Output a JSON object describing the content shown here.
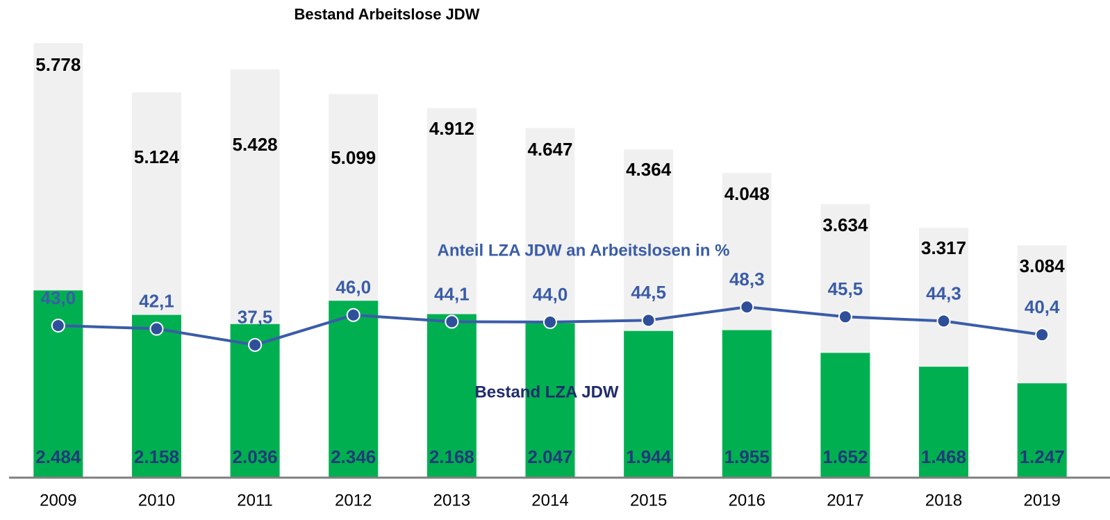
{
  "chart_data": {
    "type": "bar",
    "categories": [
      "2009",
      "2010",
      "2011",
      "2012",
      "2013",
      "2014",
      "2015",
      "2016",
      "2017",
      "2018",
      "2019"
    ],
    "ylim": [
      0,
      6000
    ],
    "y2lim": [
      0,
      128
    ],
    "series": [
      {
        "name": "Bestand Arbeitslose JDW",
        "type": "bar",
        "color": "#f0f0f0",
        "label_color": "#000000",
        "values": [
          5778,
          5124,
          5428,
          5099,
          4912,
          4647,
          4364,
          4048,
          3634,
          3317,
          3084
        ],
        "value_labels": [
          "5.778",
          "5.124",
          "5.428",
          "5.099",
          "4.912",
          "4.647",
          "4.364",
          "4.048",
          "3.634",
          "3.317",
          "3.084"
        ]
      },
      {
        "name": "Bestand LZA JDW",
        "type": "bar",
        "color": "#00b050",
        "label_color": "#223a7a",
        "values": [
          2484,
          2158,
          2036,
          2346,
          2168,
          2047,
          1944,
          1955,
          1652,
          1468,
          1247
        ],
        "value_labels": [
          "2.484",
          "2.158",
          "2.036",
          "2.346",
          "2.168",
          "2.047",
          "1.944",
          "1.955",
          "1.652",
          "1.468",
          "1.247"
        ]
      },
      {
        "name": "Anteil LZA JDW an Arbeitslosen in %",
        "type": "line",
        "axis": "y2",
        "color": "#3a5ca8",
        "label_color": "#3a5ca8",
        "values": [
          43.0,
          42.1,
          37.5,
          46.0,
          44.1,
          44.0,
          44.5,
          48.3,
          45.5,
          44.3,
          40.4
        ],
        "value_labels": [
          "43,0",
          "42,1",
          "37,5",
          "46,0",
          "44,1",
          "44,0",
          "44,5",
          "48,3",
          "45,5",
          "44,3",
          "40,4"
        ]
      }
    ]
  }
}
